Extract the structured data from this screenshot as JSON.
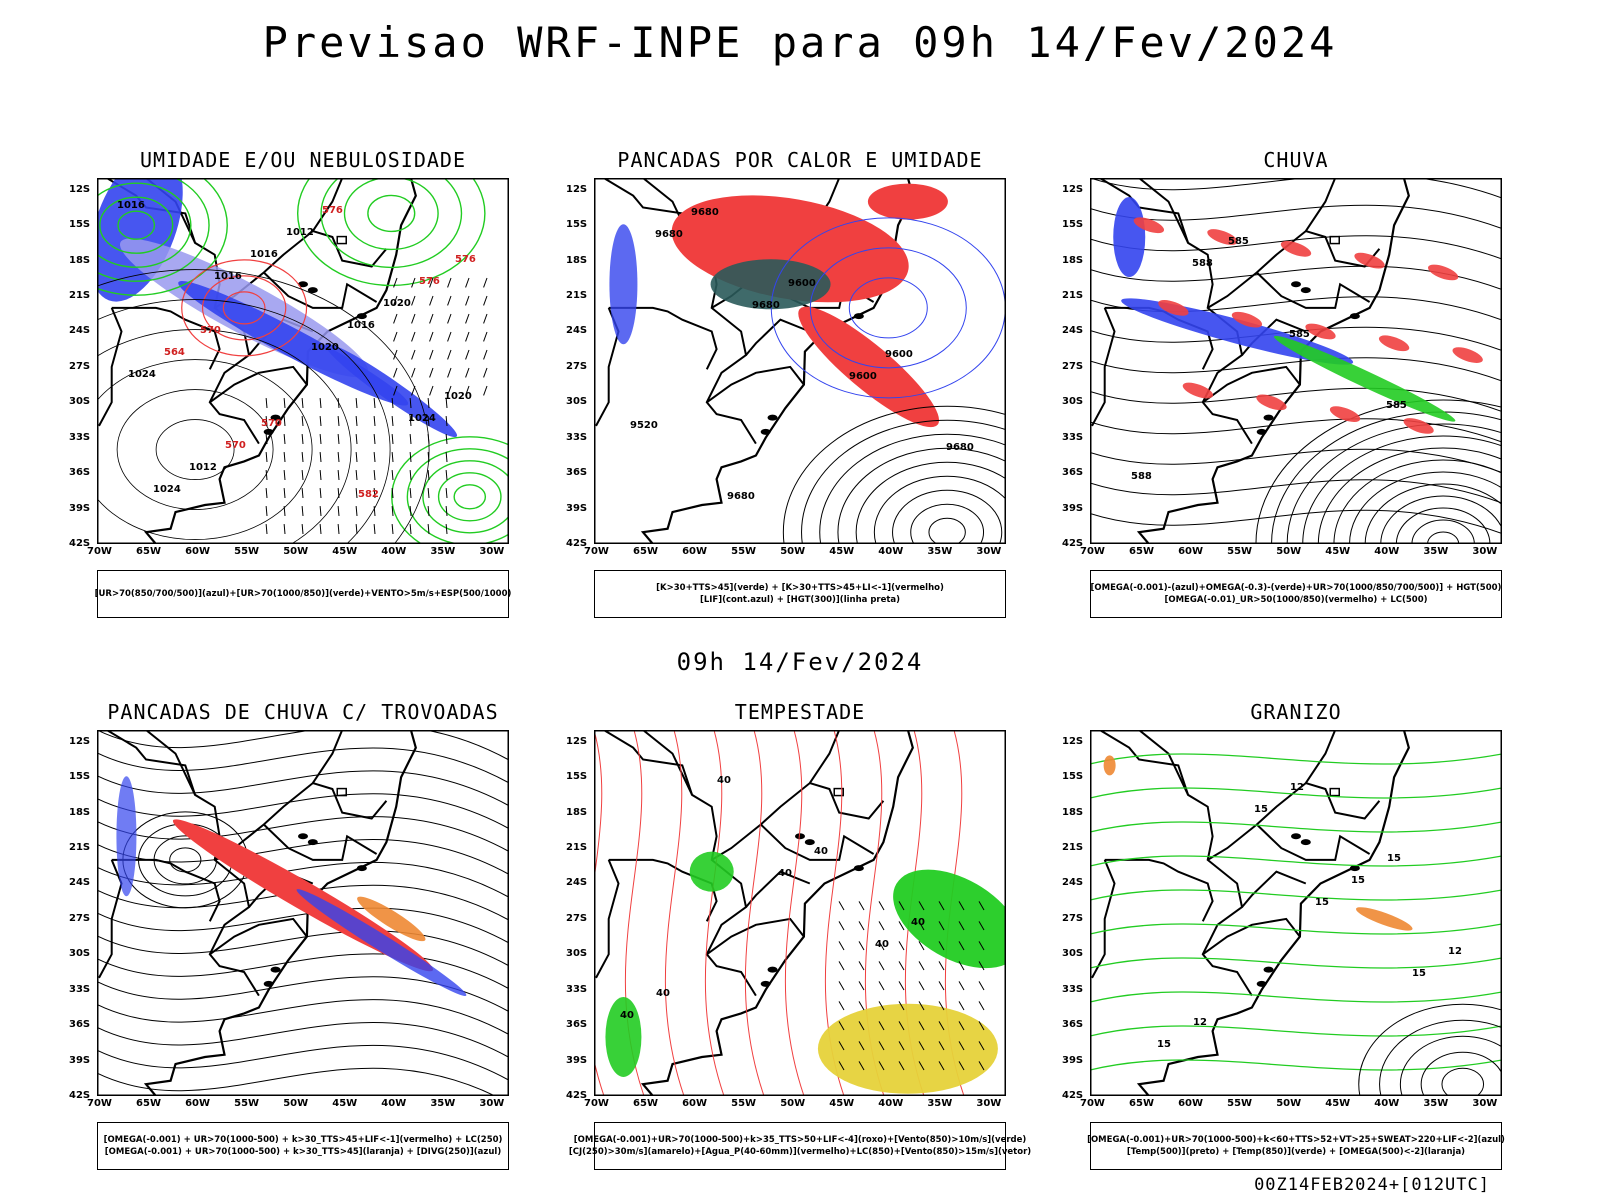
{
  "title": "Previsao WRF-INPE  para 09h 14/Fev/2024",
  "subtitle": "09h 14/Fev/2024",
  "footer": "00Z14FEB2024+[012UTC]",
  "lat_labels": [
    "12S",
    "15S",
    "18S",
    "21S",
    "24S",
    "27S",
    "30S",
    "33S",
    "36S",
    "39S",
    "42S"
  ],
  "lon_labels": [
    "70W",
    "65W",
    "60W",
    "55W",
    "50W",
    "45W",
    "40W",
    "35W",
    "30W"
  ],
  "colors": {
    "blue": "#3344ee",
    "light_blue": "#9999ee",
    "green": "#22cc22",
    "red": "#f04040",
    "dark_teal": "#2a5a5a",
    "yellow": "#e6d23a",
    "orange": "#ee8833",
    "purple": "#aa22cc",
    "black": "#000000"
  },
  "panels": [
    {
      "id": "umidade",
      "title": "UMIDADE E/OU NEBULOSIDADE",
      "legend": [
        "[UR>70(850/700/500)](azul)+[UR>70(1000/850)](verde)+VENTO>5m/s+ESP(500/1000)"
      ],
      "contour_labels": [
        "1016",
        "1016",
        "1020",
        "1024",
        "1024",
        "1016",
        "1016",
        "1020",
        "1012",
        "1012",
        "1020",
        "1024",
        "570",
        "576",
        "576",
        "564",
        "570",
        "582",
        "576",
        "570"
      ]
    },
    {
      "id": "pancadas-calor",
      "title": "PANCADAS POR CALOR E UMIDADE",
      "legend": [
        "[K>30+TTS>45](verde) + [K>30+TTS>45+LI<-1](vermelho)",
        "[LIF](cont.azul) + [HGT(300)](linha preta)"
      ],
      "contour_labels": [
        "9680",
        "9680",
        "9600",
        "9680",
        "9680",
        "9600",
        "9600",
        "9520",
        "9680"
      ]
    },
    {
      "id": "chuva",
      "title": "CHUVA",
      "legend": [
        "[OMEGA(-0.001)-(azul)+OMEGA(-0.3)-(verde)+UR>70(1000/850/700/500)] + HGT(500)",
        "[OMEGA(-0.01)_UR>50(1000/850)(vermelho) + LC(500)"
      ],
      "contour_labels": [
        "588",
        "585",
        "585",
        "588",
        "585"
      ]
    },
    {
      "id": "trovoadas",
      "title": "PANCADAS DE CHUVA C/ TROVOADAS",
      "legend": [
        "[OMEGA(-0.001) + UR>70(1000-500) + k>30_TTS>45+LIF<-1](vermelho) + LC(250)",
        "[OMEGA(-0.001) + UR>70(1000-500) + k>30_TTS>45](laranja) + [DIVG(250)](azul)"
      ],
      "contour_labels": []
    },
    {
      "id": "tempestade",
      "title": "TEMPESTADE",
      "legend": [
        "[OMEGA(-0.001)+UR>70(1000-500)+k>35_TTS>50+LIF<-4](roxo)+[Vento(850)>10m/s](verde)",
        "[CJ(250)>30m/s](amarelo)+[Agua_P(40-60mm)](vermelho)+LC(850)+[Vento(850)>15m/s](vetor)"
      ],
      "contour_labels": [
        "40",
        "40",
        "40",
        "40",
        "40",
        "40",
        "40"
      ]
    },
    {
      "id": "granizo",
      "title": "GRANIZO",
      "legend": [
        "[OMEGA(-0.001)+UR>70(1000-500)+k<60+TTS>52+VT>25+SWEAT>220+LIF<-2](azul)",
        "[Temp(500)](preto) + [Temp(850)](verde) + [OMEGA(500)<-2](laranja)"
      ],
      "contour_labels": [
        "15",
        "15",
        "15",
        "15",
        "15",
        "12",
        "12",
        "12",
        "15"
      ]
    }
  ]
}
